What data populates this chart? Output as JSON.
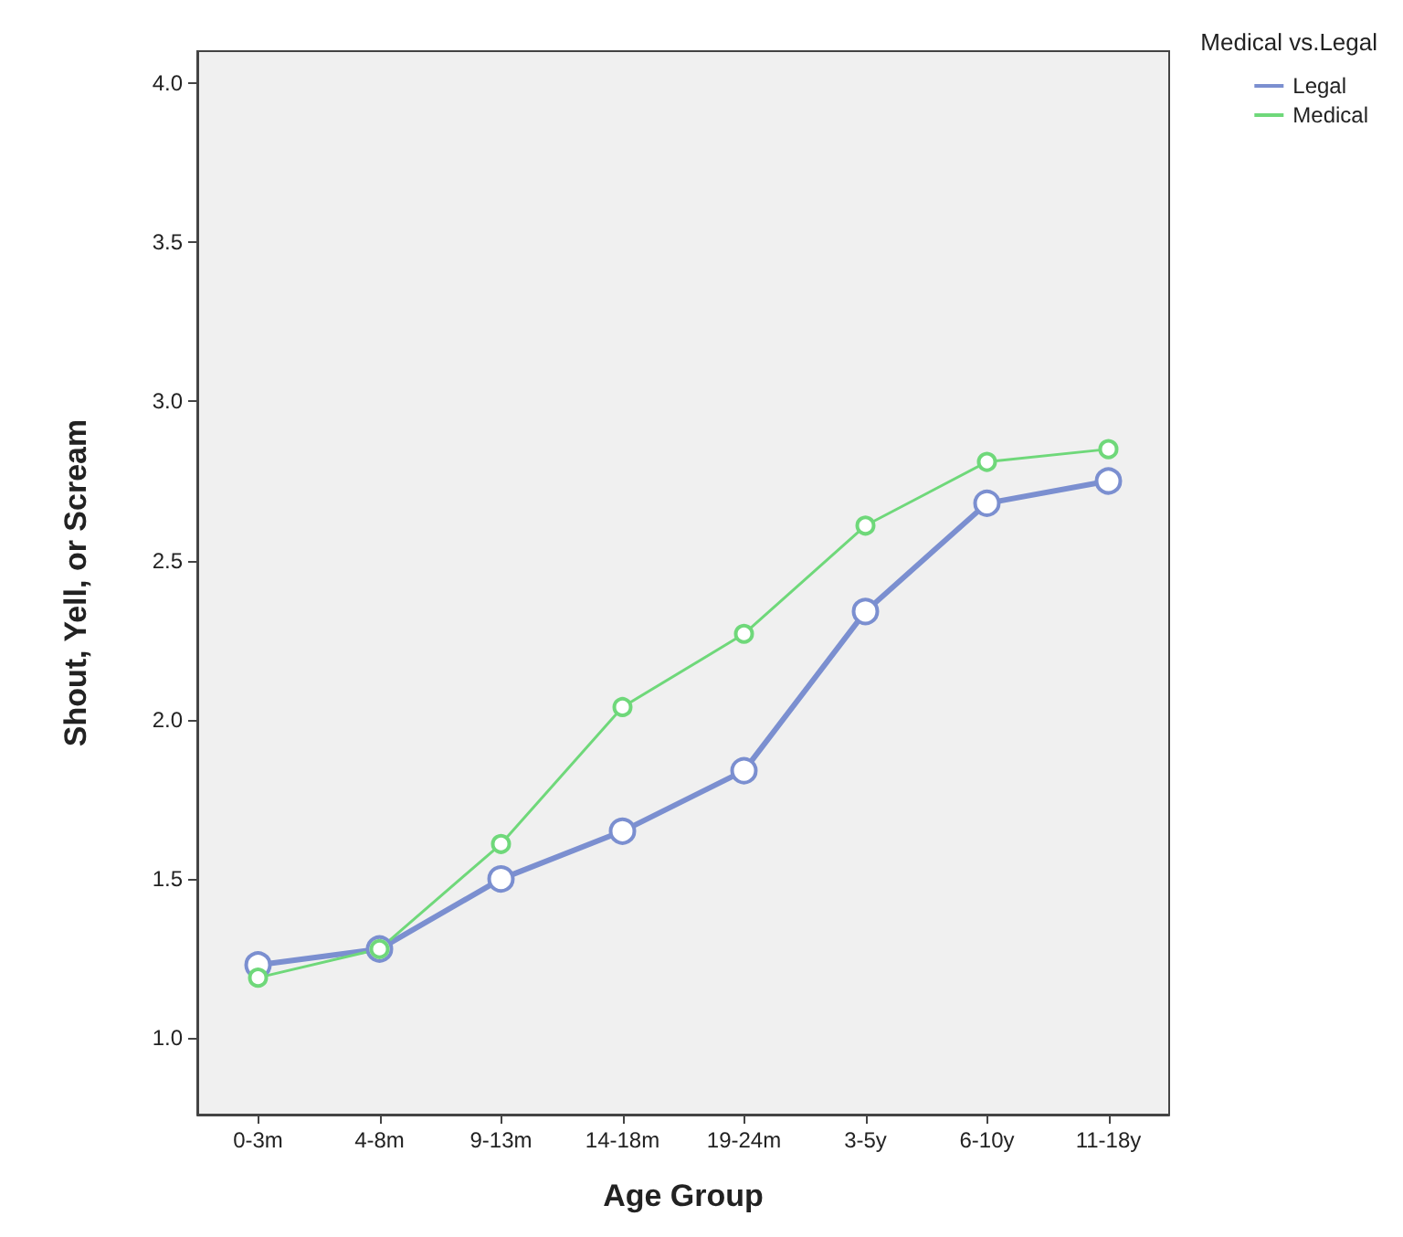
{
  "chart_data": {
    "type": "line",
    "xlabel": "Age Group",
    "ylabel": "Shout, Yell, or Scream",
    "legend_title": "Medical vs.Legal",
    "categories": [
      "0-3m",
      "4-8m",
      "9-13m",
      "14-18m",
      "19-24m",
      "3-5y",
      "6-10y",
      "11-18y"
    ],
    "series": [
      {
        "name": "Legal",
        "color": "#7b8fd0",
        "values": [
          1.23,
          1.28,
          1.5,
          1.65,
          1.84,
          2.34,
          2.68,
          2.75
        ]
      },
      {
        "name": "Medical",
        "color": "#6fd87a",
        "values": [
          1.19,
          1.28,
          1.61,
          2.04,
          2.27,
          2.61,
          2.81,
          2.85
        ]
      }
    ],
    "ylim": [
      0.76,
      4.1
    ],
    "yticks": [
      {
        "value": 1,
        "label": "1.0"
      },
      {
        "value": 1.5,
        "label": "1.5"
      },
      {
        "value": 2,
        "label": "2.0"
      },
      {
        "value": 2.5,
        "label": "2.5"
      },
      {
        "value": 3,
        "label": "3.0"
      },
      {
        "value": 3.5,
        "label": "3.5"
      },
      {
        "value": 4,
        "label": "4.0"
      }
    ],
    "grid": false,
    "legend": "top right",
    "marker": "circle",
    "line_style": "solid"
  }
}
